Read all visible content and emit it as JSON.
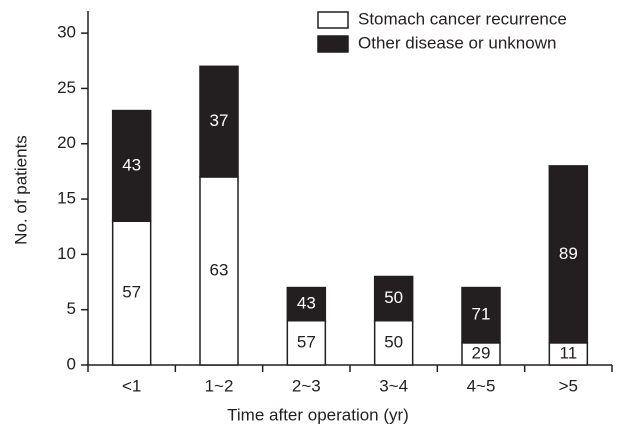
{
  "chart_data": {
    "type": "stacked-bar",
    "categories": [
      "<1",
      "1~2",
      "2~3",
      "3~4",
      "4~5",
      ">5"
    ],
    "series": [
      {
        "name": "Stomach cancer recurrence",
        "color": "#ffffff",
        "values": [
          13,
          17,
          4,
          4,
          2,
          2
        ],
        "percentages": [
          57,
          63,
          57,
          50,
          29,
          11
        ]
      },
      {
        "name": "Other disease or unknown",
        "color": "#231f20",
        "values": [
          10,
          10,
          3,
          4,
          5,
          16
        ],
        "percentages": [
          43,
          37,
          43,
          50,
          71,
          89
        ]
      }
    ],
    "xlabel": "Time after operation (yr)",
    "ylabel": "No. of patients",
    "ylim": [
      0,
      32
    ],
    "yticks": [
      0,
      5,
      10,
      15,
      20,
      25,
      30
    ],
    "legend": "top-right"
  }
}
